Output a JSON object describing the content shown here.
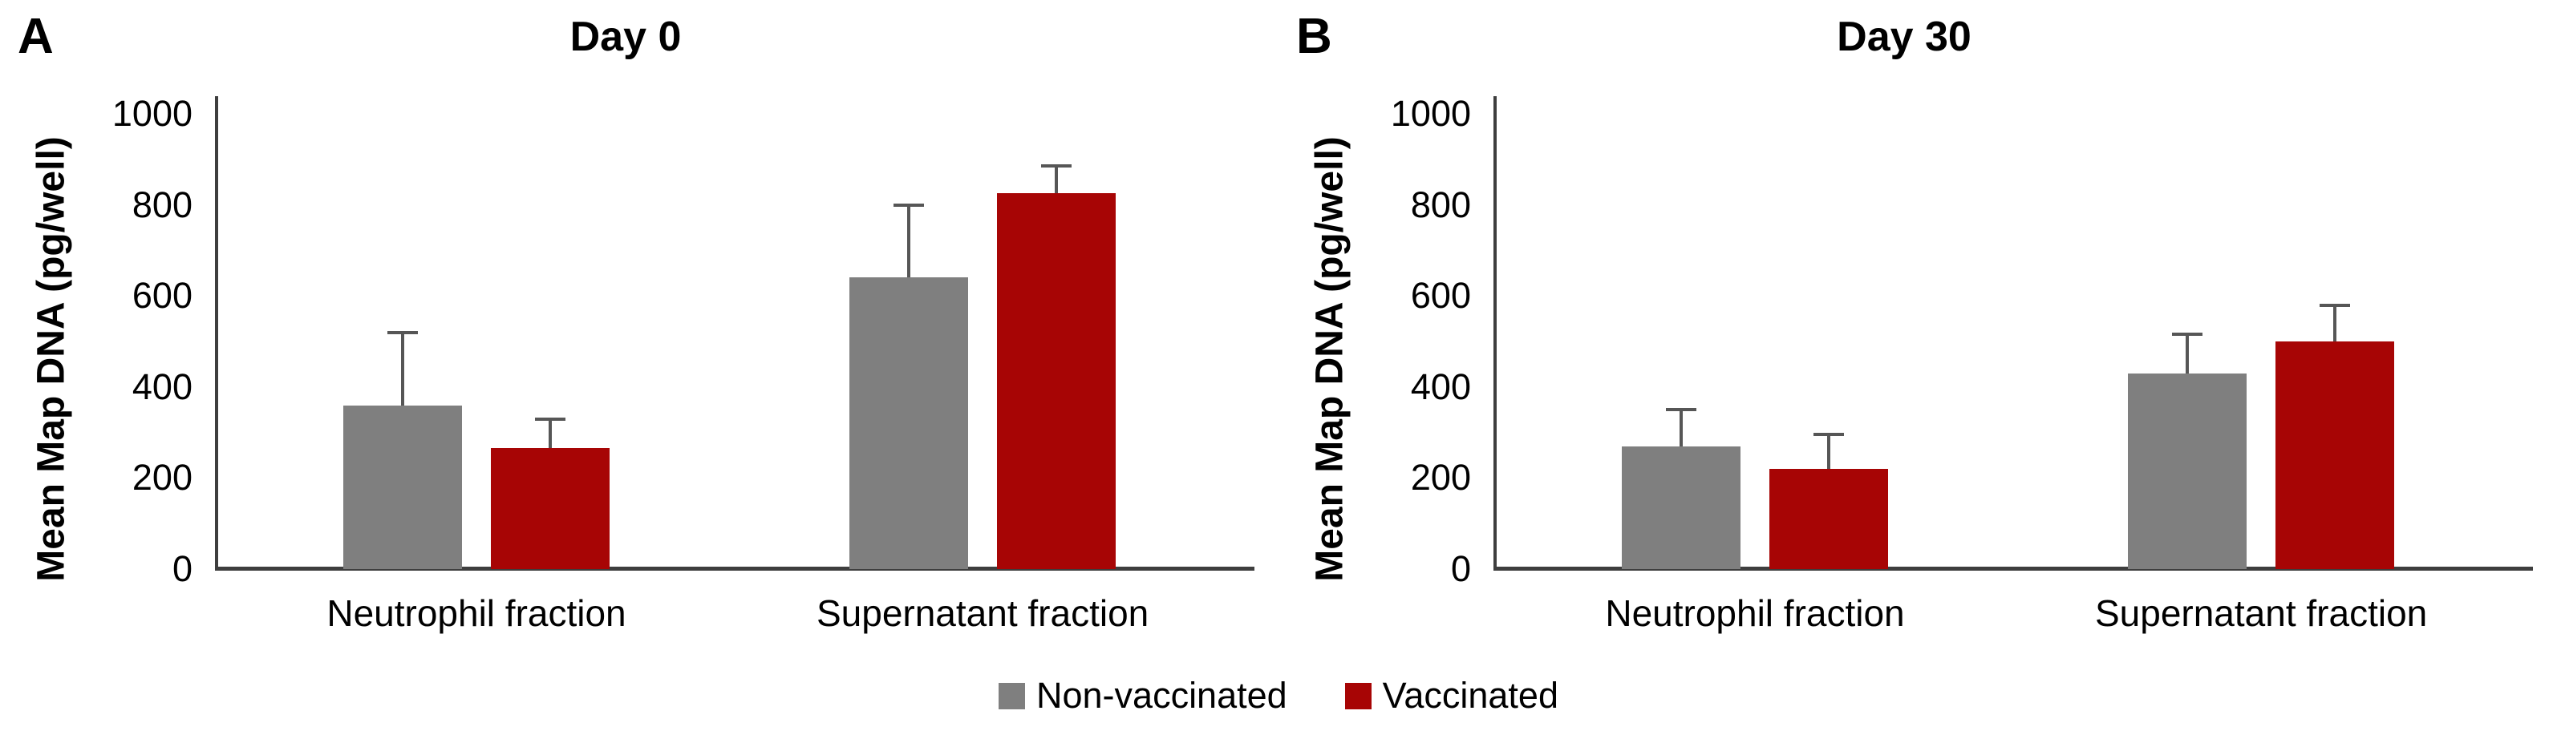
{
  "page": {
    "background": "#FFFFFF"
  },
  "colors": {
    "non_vaccinated": "#7F7F7F",
    "vaccinated": "#A70505",
    "axis": "#3E3E3E",
    "error_bar": "#565656",
    "text": "#000000"
  },
  "legend": {
    "position": "bottom-center",
    "shared": true,
    "items": [
      {
        "label": "Non-vaccinated",
        "color_key": "non_vaccinated"
      },
      {
        "label": "Vaccinated",
        "color_key": "vaccinated"
      }
    ]
  },
  "chart_data": [
    {
      "type": "bar",
      "panel_label": "A",
      "title": "Day 0",
      "xlabel": "",
      "ylabel": "Mean Map DNA (pg/well)",
      "ylim": [
        0,
        1000
      ],
      "yticks": [
        0,
        200,
        400,
        600,
        800,
        1000
      ],
      "grid": false,
      "categories": [
        "Neutrophil fraction",
        "Supernatant fraction"
      ],
      "series": [
        {
          "name": "Non-vaccinated",
          "color_key": "non_vaccinated",
          "values": [
            360,
            640
          ],
          "error_plus": [
            160,
            160
          ]
        },
        {
          "name": "Vaccinated",
          "color_key": "vaccinated",
          "values": [
            265,
            825
          ],
          "error_plus": [
            65,
            60
          ]
        }
      ]
    },
    {
      "type": "bar",
      "panel_label": "B",
      "title": "Day 30",
      "xlabel": "",
      "ylabel": "Mean Map DNA (pg/well)",
      "ylim": [
        0,
        1000
      ],
      "yticks": [
        0,
        200,
        400,
        600,
        800,
        1000
      ],
      "grid": false,
      "categories": [
        "Neutrophil fraction",
        "Supernatant fraction"
      ],
      "series": [
        {
          "name": "Non-vaccinated",
          "color_key": "non_vaccinated",
          "values": [
            270,
            430
          ],
          "error_plus": [
            80,
            85
          ]
        },
        {
          "name": "Vaccinated",
          "color_key": "vaccinated",
          "values": [
            220,
            500
          ],
          "error_plus": [
            75,
            80
          ]
        }
      ]
    }
  ]
}
